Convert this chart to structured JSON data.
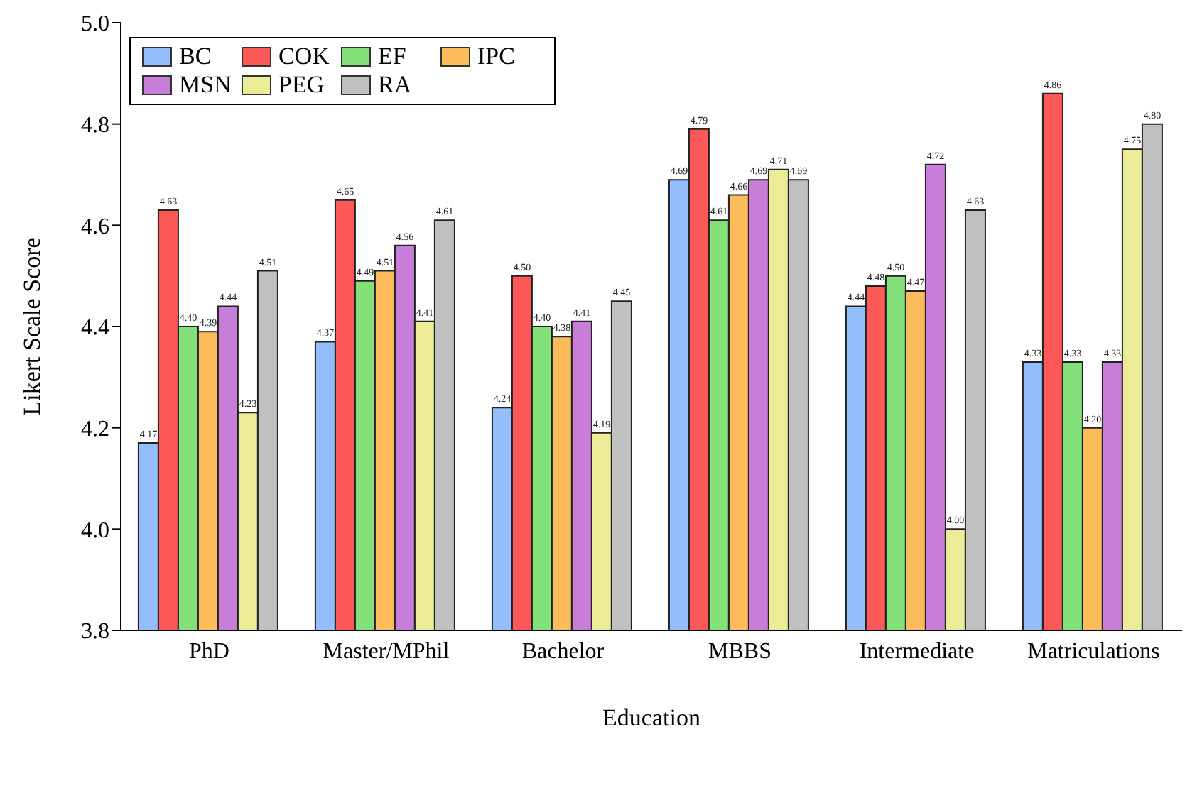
{
  "chart_data": {
    "type": "bar",
    "xlabel": "Education",
    "ylabel": "Likert Scale Score",
    "categories": [
      "PhD",
      "Master/MPhil",
      "Bachelor",
      "MBBS",
      "Intermediate",
      "Matriculations"
    ],
    "series": [
      {
        "name": "BC",
        "color": "#94bdfc",
        "values": [
          4.17,
          4.37,
          4.24,
          4.69,
          4.44,
          4.33
        ],
        "value_labels": [
          "4.17",
          "4.37",
          "4.24",
          "4.69",
          "4.44",
          "4.33"
        ]
      },
      {
        "name": "COK",
        "color": "#fc5858",
        "values": [
          4.63,
          4.65,
          4.5,
          4.79,
          4.48,
          4.86
        ],
        "value_labels": [
          "4.63",
          "4.65",
          "4.50",
          "4.79",
          "4.48",
          "4.86"
        ]
      },
      {
        "name": "EF",
        "color": "#84e078",
        "values": [
          4.4,
          4.49,
          4.4,
          4.61,
          4.5,
          4.33
        ],
        "value_labels": [
          "4.40",
          "4.49",
          "4.40",
          "4.61",
          "4.50",
          "4.33"
        ]
      },
      {
        "name": "IPC",
        "color": "#fcbc5c",
        "values": [
          4.39,
          4.51,
          4.38,
          4.66,
          4.47,
          4.2
        ],
        "value_labels": [
          "4.39",
          "4.51",
          "4.38",
          "4.66",
          "4.47",
          "4.20"
        ]
      },
      {
        "name": "MSN",
        "color": "#c87ed8",
        "values": [
          4.44,
          4.56,
          4.41,
          4.69,
          4.72,
          4.33
        ],
        "value_labels": [
          "4.44",
          "4.56",
          "4.41",
          "4.69",
          "4.72",
          "4.33"
        ]
      },
      {
        "name": "PEG",
        "color": "#ecec98",
        "values": [
          4.23,
          4.41,
          4.19,
          4.71,
          4.0,
          4.75
        ],
        "value_labels": [
          "4.23",
          "4.41",
          "4.19",
          "4.71",
          "4.00",
          "4.75"
        ]
      },
      {
        "name": "RA",
        "color": "#c0c0c0",
        "values": [
          4.51,
          4.61,
          4.45,
          4.69,
          4.63,
          4.8
        ],
        "value_labels": [
          "4.51",
          "4.61",
          "4.45",
          "4.69",
          "4.63",
          "4.80"
        ]
      }
    ],
    "ylim": [
      3.8,
      5.0
    ],
    "yticks": [
      {
        "value": 3.8,
        "label": "3.8"
      },
      {
        "value": 4.0,
        "label": "4.0"
      },
      {
        "value": 4.2,
        "label": "4.2"
      },
      {
        "value": 4.4,
        "label": "4.4"
      },
      {
        "value": 4.6,
        "label": "4.6"
      },
      {
        "value": 4.8,
        "label": "4.8"
      },
      {
        "value": 5.0,
        "label": "5.0"
      }
    ],
    "grid": false,
    "legend": "top left"
  }
}
